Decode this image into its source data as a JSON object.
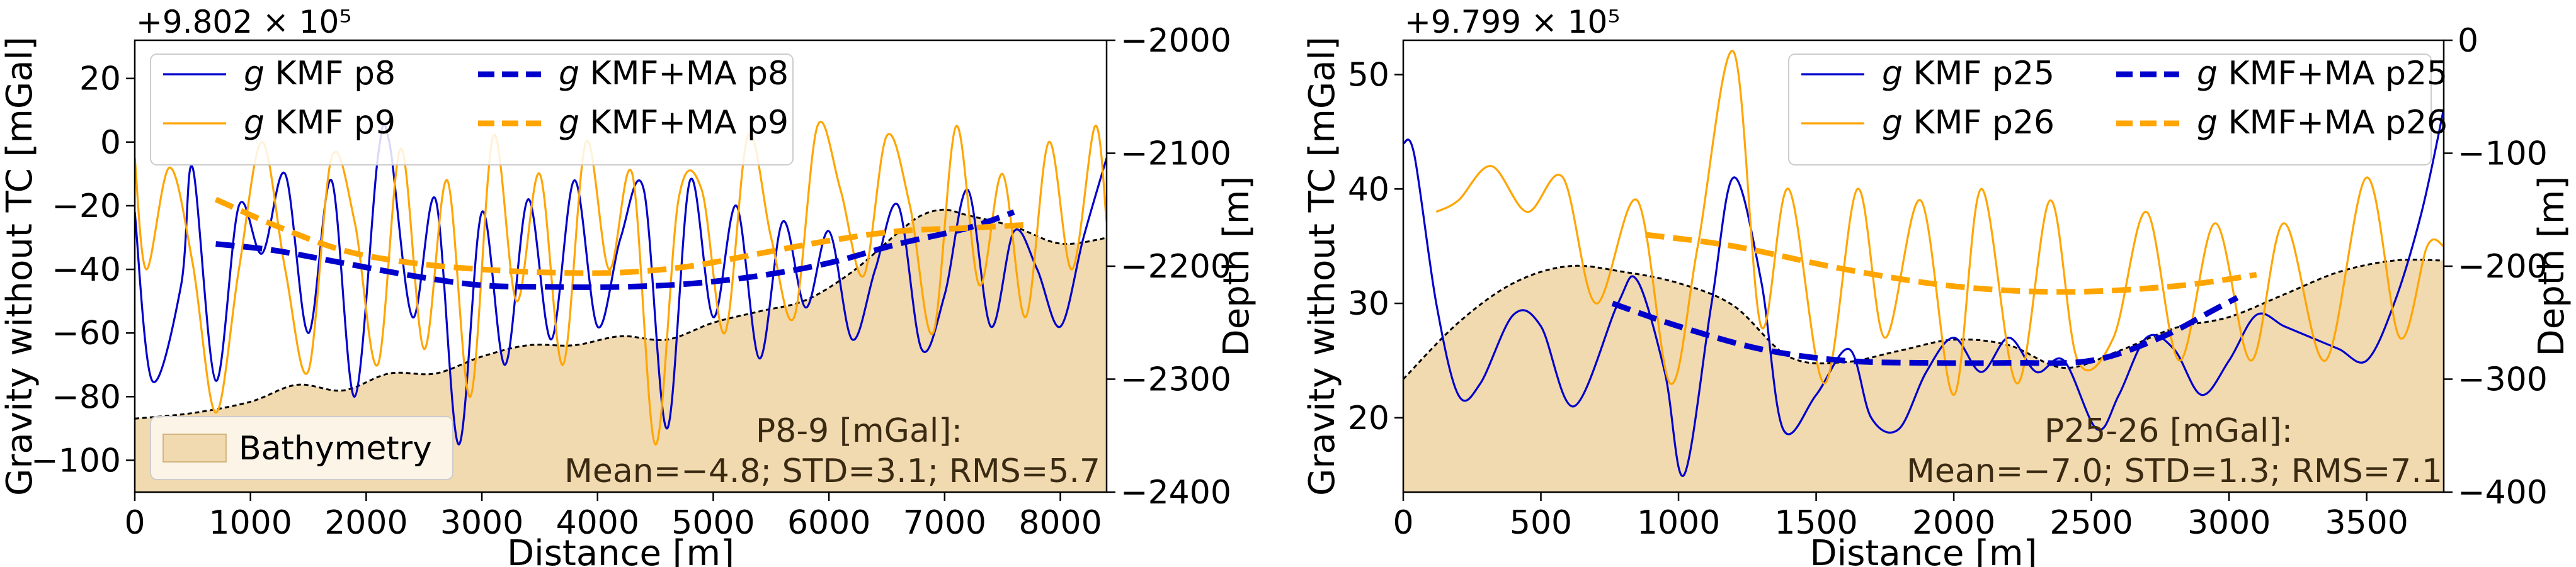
{
  "chart_data": [
    {
      "type": "line",
      "panel": "P8-9",
      "offset_label": "+9.802 × 10⁵",
      "xlabel": "Distance [m]",
      "ylabel": "Gravity without TC [mGal]",
      "y2label": "Depth [m]",
      "xlim": [
        0,
        8400
      ],
      "ylim": [
        -110,
        32
      ],
      "y2lim": [
        -2400,
        -2000
      ],
      "xticks": [
        0,
        1000,
        2000,
        3000,
        4000,
        5000,
        6000,
        7000,
        8000
      ],
      "yticks": [
        -100,
        -80,
        -60,
        -40,
        -20,
        0,
        20
      ],
      "y2ticks": [
        -2400,
        -2300,
        -2200,
        -2100,
        -2000
      ],
      "legend_position": "top-left",
      "stats_title": "P8-9 [mGal]:",
      "stats_line": "Mean=−4.8; STD=3.1; RMS=5.7",
      "series": [
        {
          "name": "g KMF p8",
          "sym": "g",
          "label": " KMF p8",
          "color": "#0000cc",
          "style": "thin",
          "seed": 3,
          "x": [
            0,
            150,
            400,
            500,
            700,
            900,
            1100,
            1300,
            1500,
            1700,
            1900,
            2100,
            2200,
            2400,
            2600,
            2800,
            3000,
            3200,
            3400,
            3600,
            3800,
            4000,
            4200,
            4400,
            4600,
            4800,
            5000,
            5200,
            5400,
            5600,
            5800,
            6000,
            6200,
            6400,
            6600,
            6800,
            7000,
            7200,
            7400,
            7600,
            7800,
            8000,
            8200,
            8400
          ],
          "y": [
            -22,
            -75,
            -45,
            -8,
            -75,
            -20,
            -35,
            -10,
            -60,
            -12,
            -80,
            -5,
            0,
            -55,
            -18,
            -95,
            -22,
            -70,
            -18,
            -62,
            -12,
            -58,
            -30,
            -15,
            -90,
            -12,
            -55,
            -20,
            -68,
            -25,
            -52,
            -28,
            -62,
            -40,
            -20,
            -65,
            -48,
            -15,
            -58,
            -28,
            -40,
            -58,
            -30,
            -5
          ]
        },
        {
          "name": "g KMF p9",
          "sym": "g",
          "label": " KMF p9",
          "color": "#ffa500",
          "style": "thin",
          "seed": 7,
          "x": [
            0,
            100,
            300,
            500,
            700,
            900,
            1100,
            1300,
            1500,
            1700,
            1900,
            2100,
            2300,
            2500,
            2700,
            2900,
            3100,
            3300,
            3500,
            3700,
            3900,
            4100,
            4300,
            4500,
            4700,
            4900,
            5100,
            5300,
            5500,
            5700,
            5900,
            6100,
            6300,
            6500,
            6700,
            6900,
            7100,
            7300,
            7500,
            7700,
            7900,
            8100,
            8300,
            8400
          ],
          "y": [
            -5,
            -40,
            -8,
            -38,
            -85,
            -40,
            0,
            -40,
            -72,
            -5,
            -25,
            -70,
            -2,
            -65,
            -12,
            -80,
            2,
            -50,
            -10,
            -70,
            0,
            -40,
            -10,
            -95,
            -18,
            -15,
            -60,
            2,
            -30,
            -55,
            5,
            -15,
            -42,
            2,
            -20,
            -60,
            5,
            -45,
            -10,
            -55,
            0,
            -40,
            5,
            -25
          ]
        },
        {
          "name": "g KMF+MA p8",
          "sym": "g",
          "label": " KMF+MA p8",
          "color": "#0000cc",
          "style": "dashed",
          "x": [
            700,
            1200,
            1800,
            2400,
            3000,
            3600,
            4200,
            4800,
            5400,
            6000,
            6600,
            7200,
            7600
          ],
          "y": [
            -32,
            -34,
            -38,
            -42,
            -45,
            -45.5,
            -45.5,
            -44.5,
            -42,
            -38,
            -32,
            -27,
            -22
          ]
        },
        {
          "name": "g KMF+MA p9",
          "sym": "g",
          "label": " KMF+MA p9",
          "color": "#ffa500",
          "style": "dashed",
          "x": [
            700,
            1200,
            1800,
            2400,
            3000,
            3600,
            4200,
            4800,
            5400,
            6000,
            6600,
            7200,
            7700
          ],
          "y": [
            -18,
            -26,
            -34,
            -38,
            -40,
            -41,
            -41,
            -39,
            -35,
            -31,
            -28,
            -27,
            -26
          ]
        }
      ],
      "bathymetry": {
        "name": "Bathymetry",
        "color": "#f1d9b0",
        "line_color": "#000000",
        "x": [
          0,
          500,
          1000,
          1400,
          1800,
          2200,
          2600,
          3000,
          3400,
          3800,
          4200,
          4600,
          5000,
          5400,
          5800,
          6200,
          6600,
          6800,
          7000,
          7200,
          7600,
          8000,
          8400
        ],
        "depth": [
          -2335,
          -2330,
          -2320,
          -2305,
          -2310,
          -2295,
          -2295,
          -2280,
          -2270,
          -2270,
          -2262,
          -2265,
          -2250,
          -2240,
          -2230,
          -2205,
          -2170,
          -2155,
          -2150,
          -2155,
          -2165,
          -2180,
          -2175
        ]
      }
    },
    {
      "type": "line",
      "panel": "P25-26",
      "offset_label": "+9.799 × 10⁵",
      "xlabel": "Distance [m]",
      "ylabel": "Gravity without TC [mGal]",
      "y2label": "Depth [m]",
      "xlim": [
        0,
        3780
      ],
      "ylim": [
        13.5,
        53
      ],
      "y2lim": [
        -400,
        0
      ],
      "xticks": [
        0,
        500,
        1000,
        1500,
        2000,
        2500,
        3000,
        3500
      ],
      "yticks": [
        20,
        30,
        40,
        50
      ],
      "y2ticks": [
        -400,
        -300,
        -200,
        -100,
        0
      ],
      "legend_position": "top-right",
      "stats_title": "P25-26 [mGal]:",
      "stats_line": "Mean=−7.0; STD=1.3; RMS=7.1",
      "series": [
        {
          "name": "g KMF p25",
          "sym": "g",
          "label": " KMF p25",
          "color": "#0000cc",
          "style": "thin",
          "x": [
            0,
            40,
            120,
            200,
            280,
            400,
            500,
            620,
            780,
            850,
            950,
            1020,
            1120,
            1200,
            1300,
            1380,
            1500,
            1620,
            1700,
            1800,
            1900,
            2000,
            2100,
            2200,
            2300,
            2400,
            2520,
            2600,
            2700,
            2800,
            2900,
            3000,
            3100,
            3200,
            3300,
            3400,
            3500,
            3600,
            3700,
            3780
          ],
          "y": [
            44,
            43,
            30,
            22,
            23,
            29,
            28,
            21,
            30,
            32,
            24,
            15,
            30,
            41,
            32,
            19,
            22,
            26,
            20,
            19,
            24,
            27,
            24,
            27,
            24,
            25,
            19,
            22,
            27,
            26,
            22,
            25,
            29,
            28,
            27,
            26,
            25,
            30,
            38,
            47
          ]
        },
        {
          "name": "g KMF p26",
          "sym": "g",
          "label": " KMF p26",
          "color": "#ffa500",
          "style": "thin",
          "x": [
            120,
            200,
            320,
            450,
            580,
            700,
            850,
            970,
            1070,
            1200,
            1300,
            1400,
            1530,
            1650,
            1750,
            1880,
            2000,
            2100,
            2230,
            2350,
            2450,
            2580,
            2700,
            2820,
            2950,
            3080,
            3200,
            3350,
            3500,
            3620,
            3720,
            3780
          ],
          "y": [
            38,
            39,
            42,
            38,
            41,
            30,
            39,
            23,
            35,
            52,
            28,
            40,
            23,
            40,
            27,
            39,
            22,
            40,
            23,
            39,
            25,
            27,
            38,
            25,
            37,
            25,
            37,
            25,
            41,
            27,
            35,
            35
          ]
        },
        {
          "name": "g KMF+MA p25",
          "sym": "g",
          "label": " KMF+MA p25",
          "color": "#0000cc",
          "style": "dashed",
          "x": [
            760,
            1000,
            1300,
            1600,
            1900,
            2200,
            2500,
            2750,
            2950,
            3030
          ],
          "y": [
            30,
            28,
            26,
            25,
            24.8,
            24.8,
            25,
            27,
            29.5,
            30.5
          ]
        },
        {
          "name": "g KMF+MA p26",
          "sym": "g",
          "label": " KMF+MA p26",
          "color": "#ffa500",
          "style": "dashed",
          "x": [
            880,
            1200,
            1600,
            2000,
            2400,
            2800,
            3100
          ],
          "y": [
            36,
            35,
            33,
            31.5,
            31,
            31.5,
            32.5
          ]
        }
      ],
      "bathymetry": {
        "name": "Bathymetry",
        "color": "#f1d9b0",
        "line_color": "#000000",
        "x": [
          0,
          200,
          400,
          600,
          800,
          1000,
          1200,
          1400,
          1600,
          1800,
          2000,
          2200,
          2400,
          2600,
          2800,
          3000,
          3200,
          3400,
          3600,
          3780
        ],
        "depth": [
          -300,
          -250,
          -215,
          -200,
          -205,
          -215,
          -235,
          -280,
          -285,
          -275,
          -265,
          -270,
          -290,
          -275,
          -255,
          -245,
          -225,
          -205,
          -195,
          -195
        ]
      }
    }
  ]
}
